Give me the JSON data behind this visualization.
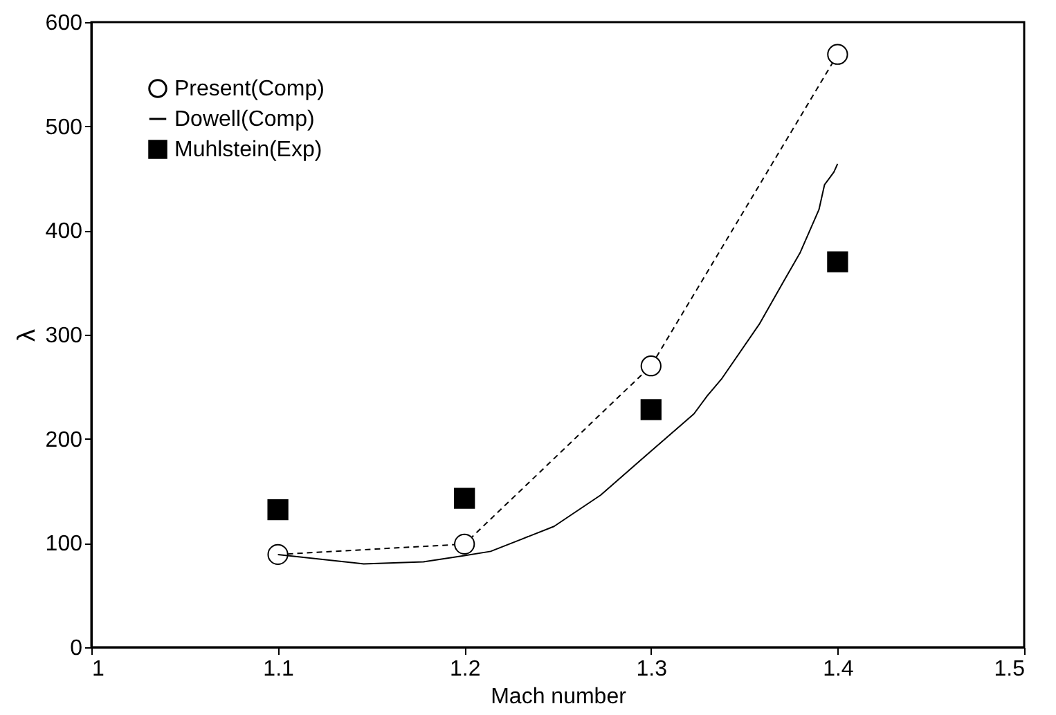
{
  "chart_data": {
    "type": "line",
    "xlabel": "Mach number",
    "ylabel": "λ",
    "xlim": [
      1,
      1.5
    ],
    "xticks": [
      1,
      1.1,
      1.2,
      1.3,
      1.4,
      1.5
    ],
    "ylim": [
      0,
      600
    ],
    "yticks": [
      0,
      100,
      200,
      300,
      400,
      500,
      600
    ],
    "grid": false,
    "legend": "top left",
    "series": [
      {
        "name": "Present(Comp)",
        "marker": "circle",
        "line_style": "dashed",
        "color": "#000000",
        "x": [
          1.1,
          1.2,
          1.3,
          1.4
        ],
        "values": [
          89,
          99,
          270,
          569
        ]
      },
      {
        "name": "Dowell(Comp)",
        "marker": "none",
        "line_style": "solid",
        "color": "#000000",
        "x": [
          1.1,
          1.146,
          1.178,
          1.2,
          1.214,
          1.231,
          1.248,
          1.273,
          1.296,
          1.323,
          1.33,
          1.338,
          1.358,
          1.371,
          1.38,
          1.39,
          1.393,
          1.398,
          1.4
        ],
        "values": [
          89,
          80,
          82,
          88,
          92,
          104,
          116,
          146,
          182,
          224,
          241,
          258,
          310,
          351,
          379,
          420,
          444,
          456,
          464
        ]
      },
      {
        "name": "Muhlstein(Exp)",
        "type": "scatter",
        "marker": "square",
        "color": "#000000",
        "x": [
          1.1,
          1.2,
          1.3,
          1.4
        ],
        "values": [
          132,
          143,
          228,
          370
        ]
      }
    ]
  }
}
